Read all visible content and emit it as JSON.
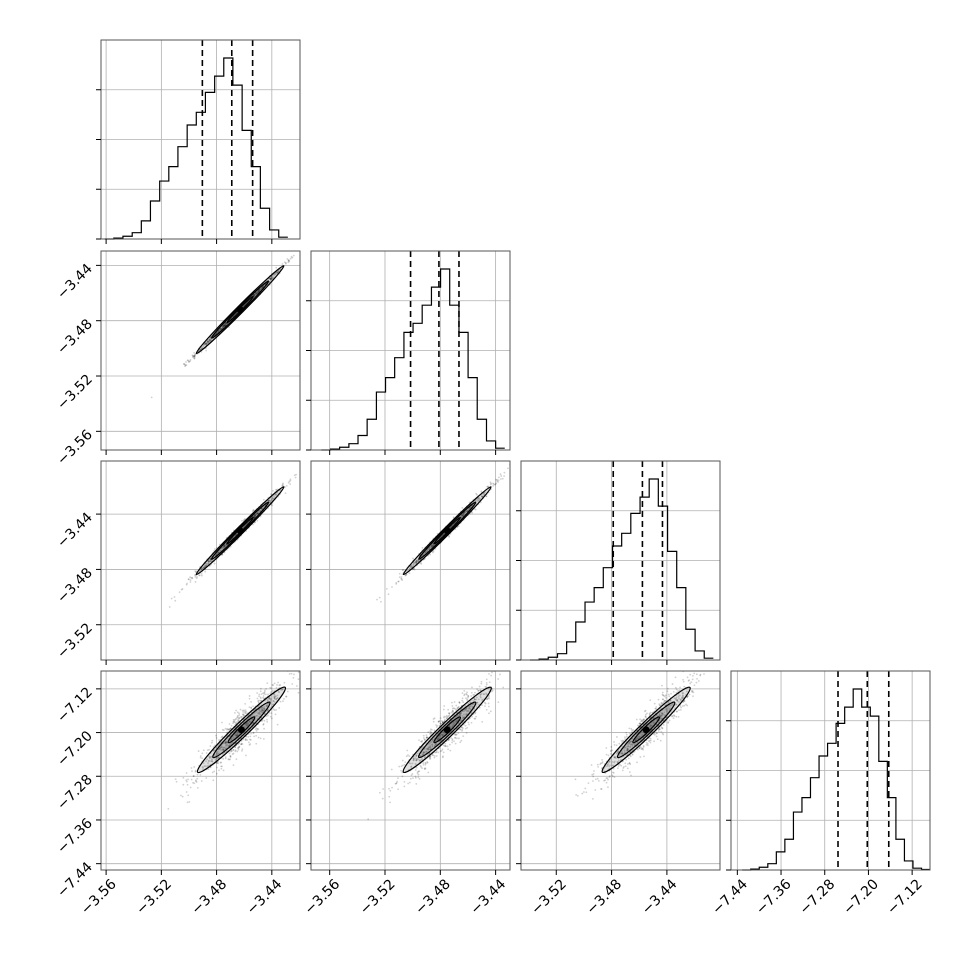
{
  "chart_data": {
    "type": "corner",
    "grid": true,
    "params": [
      {
        "tick_labels": [
          "−3.56",
          "−3.52",
          "−3.48",
          "−3.44"
        ],
        "ticks": [
          -3.56,
          -3.52,
          -3.48,
          -3.44
        ],
        "range": [
          -3.5637,
          -3.4196
        ],
        "hist_bins": [
          -3.561,
          -3.5544,
          -3.5478,
          -3.5411,
          -3.5345,
          -3.5279,
          -3.5212,
          -3.5146,
          -3.508,
          -3.5013,
          -3.4947,
          -3.4881,
          -3.4814,
          -3.4748,
          -3.4682,
          -3.4615,
          -3.4549,
          -3.4483,
          -3.4416,
          -3.435,
          -3.4284
        ],
        "hist_values": [
          0.0,
          0.5,
          1.5,
          3.5,
          10,
          21,
          32,
          40,
          51,
          63,
          70,
          81,
          90,
          100,
          85,
          60,
          40,
          17,
          5,
          1
        ],
        "quantiles": [
          -3.4903,
          -3.469,
          -3.4539
        ]
      },
      {
        "tick_labels": [
          "−3.56",
          "−3.52",
          "−3.48",
          "−3.44"
        ],
        "ticks": [
          -3.56,
          -3.52,
          -3.48,
          -3.44
        ],
        "range": [
          -3.5735,
          -3.4296
        ],
        "hist_bins": [
          -3.566,
          -3.5594,
          -3.5528,
          -3.5461,
          -3.5395,
          -3.5329,
          -3.5262,
          -3.5196,
          -3.513,
          -3.5063,
          -3.4997,
          -3.4931,
          -3.4864,
          -3.4798,
          -3.4732,
          -3.4665,
          -3.4599,
          -3.4533,
          -3.4466,
          -3.44,
          -3.4334
        ],
        "hist_values": [
          0.0,
          0.5,
          1.5,
          3.5,
          8,
          17,
          32,
          40,
          51,
          65,
          70,
          80,
          90,
          100,
          80,
          65,
          40,
          17,
          5,
          1
        ],
        "quantiles": [
          -3.5015,
          -3.481,
          -3.4665
        ]
      },
      {
        "tick_labels": [
          "−3.52",
          "−3.48",
          "−3.44"
        ],
        "ticks": [
          -3.52,
          -3.48,
          -3.44
        ],
        "range": [
          -3.5455,
          -3.4016
        ],
        "hist_bins": [
          -3.539,
          -3.5324,
          -3.5258,
          -3.5191,
          -3.5125,
          -3.5059,
          -3.4992,
          -3.4926,
          -3.486,
          -3.4793,
          -3.4727,
          -3.4661,
          -3.4594,
          -3.4528,
          -3.4462,
          -3.4395,
          -3.4329,
          -3.4263,
          -3.4196,
          -3.413,
          -3.4064
        ],
        "hist_values": [
          0.0,
          0.5,
          1.5,
          3.5,
          10,
          21,
          32,
          40,
          51,
          63,
          70,
          81,
          90,
          100,
          85,
          60,
          40,
          17,
          5,
          1
        ],
        "quantiles": [
          -3.4788,
          -3.4577,
          -3.4432
        ]
      },
      {
        "tick_labels": [
          "−7.44",
          "−7.36",
          "−7.28",
          "−7.20",
          "−7.12"
        ],
        "ticks": [
          -7.44,
          -7.36,
          -7.28,
          -7.2,
          -7.12
        ],
        "range": [
          -7.4516,
          -7.0873
        ],
        "hist_bins": [
          -7.4311,
          -7.4155,
          -7.3999,
          -7.3842,
          -7.3686,
          -7.353,
          -7.3373,
          -7.3217,
          -7.3061,
          -7.2904,
          -7.2748,
          -7.2592,
          -7.2435,
          -7.2279,
          -7.2123,
          -7.1966,
          -7.181,
          -7.1654,
          -7.1497,
          -7.1341,
          -7.1185,
          -7.1028,
          -7.0872
        ],
        "hist_values": [
          0.0,
          0.5,
          1.5,
          3.5,
          10,
          17,
          32,
          40,
          51,
          63,
          70,
          81,
          90,
          100,
          90,
          85,
          60,
          40,
          17,
          5,
          1,
          0.3
        ],
        "quantiles": [
          -7.2557,
          -7.2021,
          -7.1628
        ]
      }
    ],
    "scatter_pairs": [
      {
        "x": 0,
        "y": 1,
        "center": [
          -3.463,
          -3.472
        ],
        "slope": 1.0,
        "spread": 0.0012,
        "contours": 3
      },
      {
        "x": 0,
        "y": 2,
        "center": [
          -3.463,
          -3.452
        ],
        "slope": 1.0,
        "spread": 0.002,
        "contours": 3
      },
      {
        "x": 1,
        "y": 2,
        "center": [
          -3.475,
          -3.452
        ],
        "slope": 1.0,
        "spread": 0.002,
        "contours": 3
      },
      {
        "x": 0,
        "y": 3,
        "center": [
          -3.462,
          -7.195
        ],
        "slope": 2.45,
        "spread": 0.016,
        "contours": 3
      },
      {
        "x": 1,
        "y": 3,
        "center": [
          -3.475,
          -7.195
        ],
        "slope": 2.45,
        "spread": 0.016,
        "contours": 3
      },
      {
        "x": 2,
        "y": 3,
        "center": [
          -3.455,
          -7.195
        ],
        "slope": 2.45,
        "spread": 0.016,
        "contours": 3
      }
    ]
  }
}
